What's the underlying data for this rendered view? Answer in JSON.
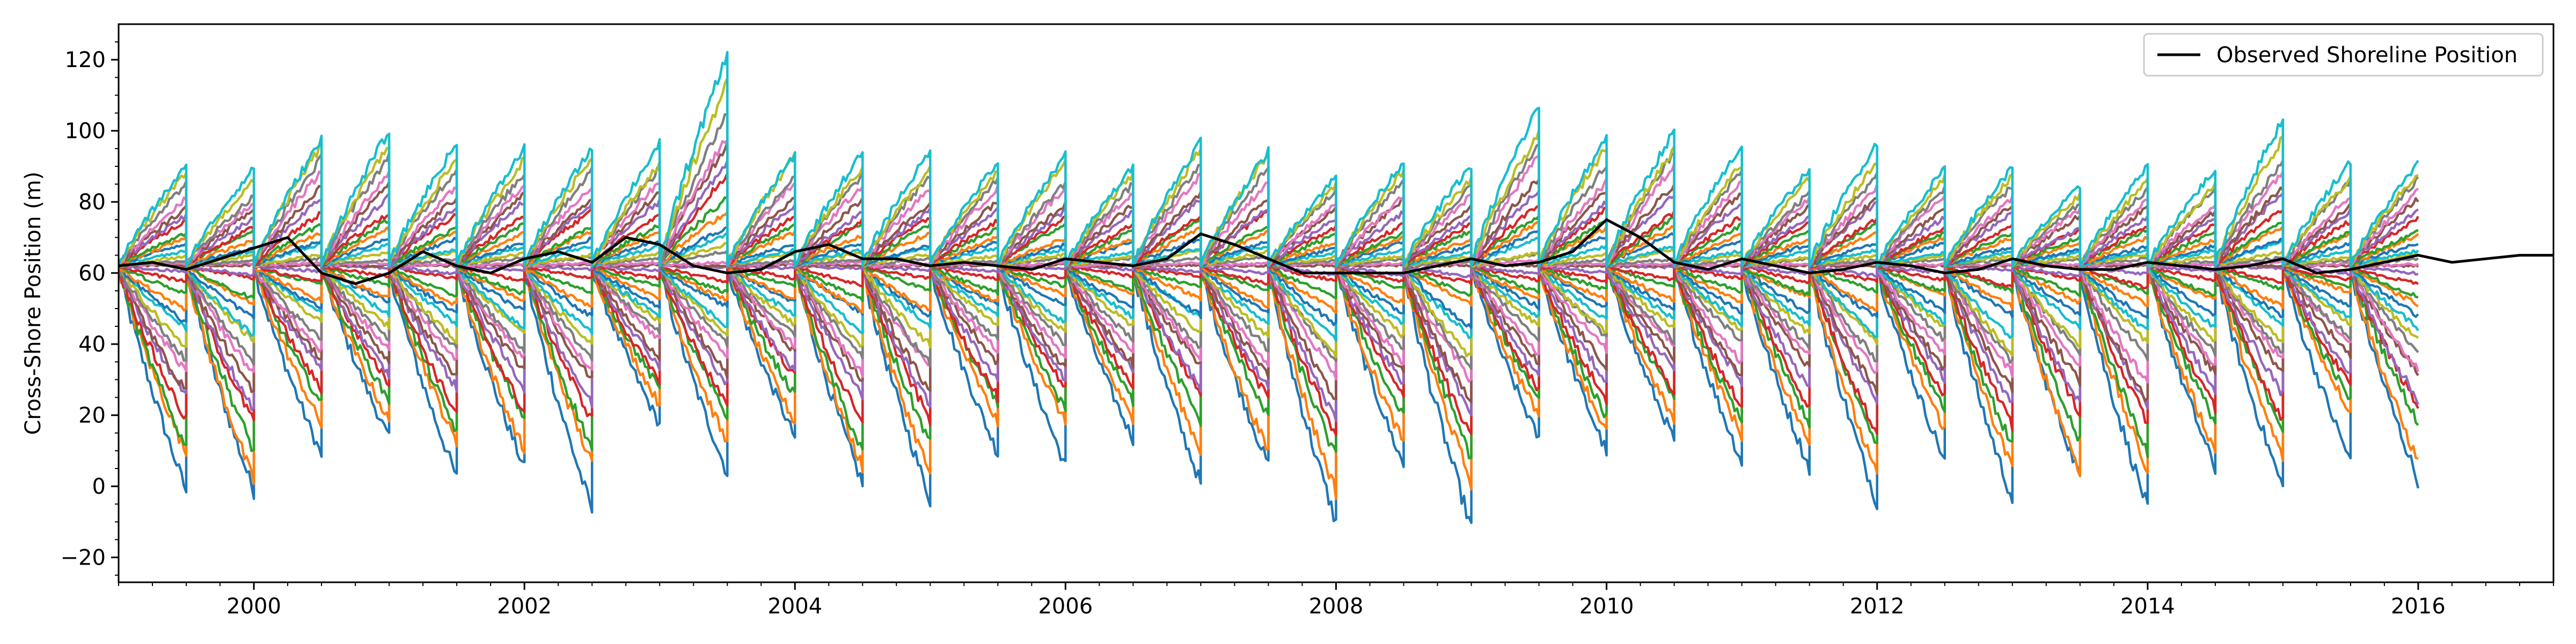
{
  "chart_data": {
    "type": "line",
    "title": "",
    "xlabel": "",
    "ylabel": "Cross-Shore Position (m)",
    "xlim": [
      1999.0,
      2017.0
    ],
    "ylim": [
      -27,
      130
    ],
    "xticks": [
      2000,
      2002,
      2004,
      2006,
      2008,
      2010,
      2012,
      2014,
      2016
    ],
    "xtick_labels": [
      "2000",
      "2002",
      "2004",
      "2006",
      "2008",
      "2010",
      "2012",
      "2014",
      "2016"
    ],
    "yticks": [
      -20,
      0,
      20,
      40,
      60,
      80,
      100,
      120
    ],
    "ytick_labels": [
      "−20",
      "0",
      "20",
      "40",
      "60",
      "80",
      "100",
      "120"
    ],
    "grid": false,
    "legend": {
      "position": "top-right",
      "entries": [
        {
          "name": "Observed Shoreline Position",
          "color": "#000000"
        }
      ]
    },
    "ensemble": {
      "description_visible": false,
      "reset_value": 62,
      "reset_interval_years": 0.5,
      "start_year": 1999.0,
      "end_year": 2017.0,
      "palette": [
        "#1f77b4",
        "#ff7f0e",
        "#2ca02c",
        "#d62728",
        "#9467bd",
        "#8c564b",
        "#e377c2",
        "#7f7f7f",
        "#bcbd22",
        "#17becf"
      ],
      "member_count": 30,
      "segment_end_ranges": [
        [
          -12,
          92
        ],
        [
          -14,
          90
        ],
        [
          4,
          101
        ],
        [
          4,
          102
        ],
        [
          -7,
          97
        ],
        [
          -6,
          98
        ],
        [
          -13,
          98
        ],
        [
          8,
          98
        ],
        [
          -2,
          122
        ],
        [
          6,
          97
        ],
        [
          -13,
          95
        ],
        [
          -15,
          95
        ],
        [
          1,
          94
        ],
        [
          0,
          95
        ],
        [
          4,
          93
        ],
        [
          -3,
          101
        ],
        [
          -5,
          98
        ],
        [
          -19,
          90
        ],
        [
          -5,
          93
        ],
        [
          -21,
          92
        ],
        [
          3,
          108
        ],
        [
          0,
          100
        ],
        [
          3,
          103
        ],
        [
          -5,
          97
        ],
        [
          -3,
          91
        ],
        [
          -15,
          97
        ],
        [
          0,
          91
        ],
        [
          -17,
          92
        ],
        [
          -10,
          86
        ],
        [
          -17,
          92
        ],
        [
          -8,
          90
        ],
        [
          -8,
          104
        ],
        [
          5,
          93
        ],
        [
          -8,
          94
        ]
      ]
    },
    "observed": {
      "name": "Observed Shoreline Position",
      "color": "#000000",
      "x": [
        1999.0,
        1999.25,
        1999.5,
        1999.75,
        2000.0,
        2000.25,
        2000.5,
        2000.75,
        2001.0,
        2001.25,
        2001.5,
        2001.75,
        2002.0,
        2002.25,
        2002.5,
        2002.75,
        2003.0,
        2003.25,
        2003.5,
        2003.75,
        2004.0,
        2004.25,
        2004.5,
        2004.75,
        2005.0,
        2005.25,
        2005.5,
        2005.75,
        2006.0,
        2006.25,
        2006.5,
        2006.75,
        2007.0,
        2007.25,
        2007.5,
        2007.75,
        2008.0,
        2008.25,
        2008.5,
        2008.75,
        2009.0,
        2009.25,
        2009.5,
        2009.75,
        2010.0,
        2010.25,
        2010.5,
        2010.75,
        2011.0,
        2011.25,
        2011.5,
        2011.75,
        2012.0,
        2012.25,
        2012.5,
        2012.75,
        2013.0,
        2013.25,
        2013.5,
        2013.75,
        2014.0,
        2014.25,
        2014.5,
        2014.75,
        2015.0,
        2015.25,
        2015.5,
        2015.75,
        2016.0,
        2016.25,
        2016.5,
        2016.75,
        2017.0
      ],
      "y": [
        62,
        63,
        61,
        64,
        67,
        70,
        60,
        57,
        60,
        66,
        62,
        60,
        64,
        66,
        63,
        70,
        68,
        62,
        60,
        61,
        66,
        68,
        64,
        64,
        62,
        63,
        62,
        61,
        64,
        63,
        62,
        64,
        71,
        68,
        64,
        60,
        60,
        60,
        60,
        62,
        64,
        62,
        63,
        66,
        75,
        70,
        63,
        61,
        64,
        62,
        60,
        61,
        63,
        62,
        60,
        61,
        64,
        62,
        61,
        61,
        63,
        62,
        61,
        62,
        64,
        60,
        61,
        63,
        65,
        63,
        64,
        65,
        65
      ]
    }
  }
}
